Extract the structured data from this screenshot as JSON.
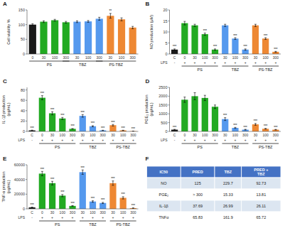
{
  "chart_data": [
    {
      "type": "bar",
      "title": "A",
      "y_label": "Cell viability %",
      "categories": [
        "0",
        "30",
        "100",
        "300",
        "30",
        "100",
        "300",
        "30",
        "100",
        "300"
      ],
      "values": [
        100,
        110,
        115,
        108,
        110,
        111,
        120,
        130,
        118,
        90
      ],
      "errors": [
        3,
        3,
        3,
        3,
        3,
        3,
        5,
        8,
        5,
        4
      ],
      "colors": [
        "#1a1a1a",
        "#22aa22",
        "#22aa22",
        "#22aa22",
        "#5599ee",
        "#5599ee",
        "#5599ee",
        "#ee8833",
        "#ee8833",
        "#ee8833"
      ],
      "ylim": [
        0,
        150
      ],
      "yticks": [
        0,
        50,
        100,
        150
      ],
      "annotations": [
        null,
        null,
        null,
        null,
        null,
        null,
        null,
        "**",
        null,
        null
      ],
      "groups": [
        {
          "label": "PS",
          "span": [
            0,
            3
          ]
        },
        {
          "label": "TBZ",
          "span": [
            3,
            6
          ]
        },
        {
          "label": "PS-TBZ",
          "span": [
            6,
            9
          ]
        }
      ]
    },
    {
      "type": "bar",
      "title": "B",
      "y_label": "NO production (μM)",
      "categories": [
        "C",
        "0",
        "30",
        "100",
        "300",
        "30",
        "100",
        "300",
        "30",
        "100",
        "300"
      ],
      "values": [
        2,
        14,
        13,
        9,
        2,
        13,
        7,
        2,
        13,
        7,
        1
      ],
      "errors": [
        0.3,
        0.8,
        0.5,
        0.5,
        0.3,
        0.5,
        0.4,
        0.3,
        0.5,
        0.4,
        0.2
      ],
      "colors": [
        "#1a1a1a",
        "#22aa22",
        "#22aa22",
        "#22aa22",
        "#22aa22",
        "#5599ee",
        "#5599ee",
        "#5599ee",
        "#ee8833",
        "#ee8833",
        "#ee8833"
      ],
      "ylim": [
        0,
        20
      ],
      "yticks": [
        0,
        5,
        10,
        15,
        20
      ],
      "lps_label": "LPS",
      "lps": [
        "-",
        "+",
        "+",
        "+",
        "+",
        "+",
        "+",
        "+",
        "+",
        "+",
        "+"
      ],
      "annotations": [
        "***",
        null,
        null,
        "***",
        "***",
        null,
        "***",
        "***",
        null,
        "***",
        "***"
      ],
      "groups": [
        {
          "label": "PS",
          "span": [
            1,
            4
          ]
        },
        {
          "label": "TBZ",
          "span": [
            5,
            7
          ]
        },
        {
          "label": "PS-TBZ",
          "span": [
            8,
            10
          ]
        }
      ]
    },
    {
      "type": "bar",
      "title": "C",
      "y_label": "IL-1β production\n(pg/mL)",
      "categories": [
        "C",
        "0",
        "30",
        "100",
        "300",
        "30",
        "100",
        "300",
        "30",
        "100",
        "300"
      ],
      "values": [
        2,
        65,
        35,
        25,
        5,
        30,
        10,
        2,
        12,
        2,
        0.5
      ],
      "errors": [
        0.5,
        4,
        3,
        2,
        0.5,
        2.5,
        1,
        0.3,
        1.5,
        0.3,
        0.1
      ],
      "colors": [
        "#1a1a1a",
        "#22aa22",
        "#22aa22",
        "#22aa22",
        "#22aa22",
        "#5599ee",
        "#5599ee",
        "#5599ee",
        "#ee8833",
        "#ee8833",
        "#ee8833"
      ],
      "ylim": [
        0,
        85
      ],
      "yticks": [
        0,
        20,
        40,
        60,
        80
      ],
      "lps_label": "LPS",
      "lps": [
        "-",
        "+",
        "+",
        "+",
        "+",
        "+",
        "+",
        "+",
        "+",
        "+",
        "+"
      ],
      "annotations": [
        "***",
        "***",
        "***",
        "***",
        "***",
        "***",
        "***",
        "***",
        "***",
        "***",
        "***"
      ],
      "groups": [
        {
          "label": "PS",
          "span": [
            1,
            4
          ]
        },
        {
          "label": "TBZ",
          "span": [
            5,
            7
          ]
        },
        {
          "label": "PS-TBZ",
          "span": [
            8,
            10
          ]
        }
      ]
    },
    {
      "type": "bar",
      "title": "D",
      "y_label": "PGE₂ production\n(pg/mL)",
      "categories": [
        "C",
        "0",
        "30",
        "100",
        "300",
        "30",
        "100",
        "300",
        "30",
        "100",
        "300"
      ],
      "values": [
        100,
        1800,
        2000,
        1900,
        1400,
        700,
        200,
        100,
        400,
        150,
        100
      ],
      "errors": [
        20,
        150,
        200,
        150,
        100,
        80,
        30,
        20,
        50,
        20,
        15
      ],
      "colors": [
        "#1a1a1a",
        "#22aa22",
        "#22aa22",
        "#22aa22",
        "#22aa22",
        "#5599ee",
        "#5599ee",
        "#5599ee",
        "#ee8833",
        "#ee8833",
        "#ee8833"
      ],
      "ylim": [
        0,
        2500
      ],
      "yticks": [
        0,
        500,
        1000,
        1500,
        2000,
        2500
      ],
      "lps_label": "LPS",
      "lps": [
        "-",
        "+",
        "+",
        "+",
        "+",
        "+",
        "+",
        "+",
        "+",
        "+",
        "+"
      ],
      "annotations": [
        "***",
        null,
        null,
        null,
        null,
        "***",
        "***",
        "***",
        "***",
        "***",
        "***"
      ],
      "groups": [
        {
          "label": "PS",
          "span": [
            1,
            4
          ]
        },
        {
          "label": "TBZ",
          "span": [
            5,
            7
          ]
        },
        {
          "label": "PS-TBZ",
          "span": [
            8,
            10
          ]
        }
      ]
    },
    {
      "type": "bar",
      "title": "E",
      "y_label": "TNF-α production\n(pg/mL)",
      "categories": [
        "C",
        "0",
        "30",
        "100",
        "300",
        "30",
        "100",
        "300",
        "30",
        "100",
        "300"
      ],
      "values": [
        2000,
        48000,
        35000,
        18000,
        4000,
        50000,
        10000,
        8000,
        35000,
        15000,
        1000
      ],
      "errors": [
        300,
        3000,
        2500,
        1500,
        400,
        3000,
        1000,
        800,
        3000,
        1500,
        200
      ],
      "colors": [
        "#1a1a1a",
        "#22aa22",
        "#22aa22",
        "#22aa22",
        "#22aa22",
        "#5599ee",
        "#5599ee",
        "#5599ee",
        "#ee8833",
        "#ee8833",
        "#ee8833"
      ],
      "ylim": [
        0,
        60000
      ],
      "yticks": [
        0,
        20000,
        40000,
        60000
      ],
      "lps_label": "LPS",
      "lps": [
        "-",
        "+",
        "+",
        "+",
        "+",
        "+",
        "+",
        "+",
        "+",
        "+",
        "+"
      ],
      "annotations": [
        "***",
        "***",
        "***",
        "***",
        "***",
        "***",
        "***",
        "***",
        "***",
        "***",
        "***"
      ],
      "groups": [
        {
          "label": "PS",
          "span": [
            1,
            4
          ]
        },
        {
          "label": "TBZ",
          "span": [
            5,
            7
          ]
        },
        {
          "label": "PS-TBZ",
          "span": [
            8,
            10
          ]
        }
      ]
    },
    {
      "type": "table",
      "title": "F",
      "headers": [
        "IC50",
        "PRED",
        "TBZ",
        "PRED +\nTBZ"
      ],
      "rows": [
        [
          "NO",
          "125",
          "229.7",
          "92.73"
        ],
        [
          "PGE₂",
          "> 300",
          "15.33",
          "13.81"
        ],
        [
          "IL-1β",
          "37.69",
          "26.99",
          "26.11"
        ],
        [
          "TNFα",
          "65.83",
          "161.9",
          "65.72"
        ]
      ],
      "header_color": "#4472c4",
      "header_text_color": "#ffffff",
      "row_colors": [
        "#dce6f1",
        "#ffffff"
      ]
    }
  ]
}
